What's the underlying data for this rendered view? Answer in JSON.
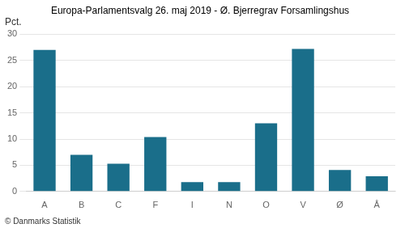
{
  "chart_data": {
    "type": "bar",
    "title": "Europa-Parlamentsvalg 26. maj 2019 - Ø. Bjerregrav Forsamlingshus",
    "ylabel": "Pct.",
    "footer": "© Danmarks Statistik",
    "categories": [
      "A",
      "B",
      "C",
      "F",
      "I",
      "N",
      "O",
      "V",
      "Ø",
      "Å"
    ],
    "values": [
      27.0,
      7.0,
      5.3,
      10.4,
      1.8,
      1.8,
      13.0,
      27.2,
      4.1,
      2.9
    ],
    "color": "#1a6e8a",
    "ylim": [
      0,
      30
    ],
    "yticks": [
      0,
      5,
      10,
      15,
      20,
      25,
      30
    ],
    "grid": true
  }
}
